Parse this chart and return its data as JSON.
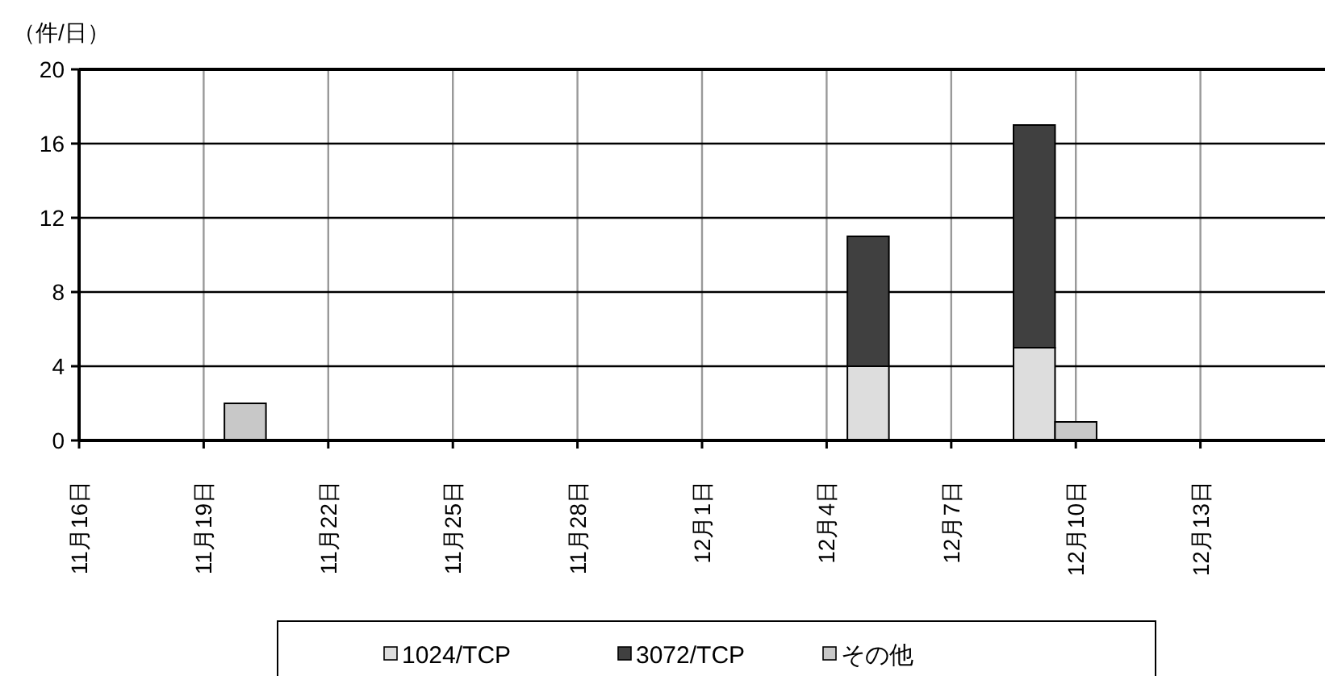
{
  "chart_data": {
    "type": "bar",
    "stacked": true,
    "ylabel": "（件/日）",
    "x": [
      "--11-20",
      "--12-05",
      "--12-09",
      "--12-10"
    ],
    "series": [
      {
        "name": "1024/TCP",
        "color": "#dddddd",
        "values": [
          0,
          4,
          5,
          0
        ]
      },
      {
        "name": "3072/TCP",
        "color": "#404040",
        "values": [
          0,
          7,
          12,
          0
        ]
      },
      {
        "name": "その他",
        "color": "#c8c8c8",
        "values": [
          2,
          0,
          0,
          1
        ]
      }
    ],
    "xlim": [
      "--11-16",
      "--12-16"
    ],
    "xticks": [
      {
        "value": "--11-16",
        "label": "11月16日"
      },
      {
        "value": "--11-19",
        "label": "11月19日"
      },
      {
        "value": "--11-22",
        "label": "11月22日"
      },
      {
        "value": "--11-25",
        "label": "11月25日"
      },
      {
        "value": "--11-28",
        "label": "11月28日"
      },
      {
        "value": "--12-01",
        "label": "12月1日"
      },
      {
        "value": "--12-04",
        "label": "12月4日"
      },
      {
        "value": "--12-07",
        "label": "12月7日"
      },
      {
        "value": "--12-10",
        "label": "12月10日"
      },
      {
        "value": "--12-13",
        "label": "12月13日"
      }
    ],
    "ylim": [
      0,
      20
    ],
    "yticks": [
      0,
      4,
      8,
      12,
      16,
      20
    ],
    "grid": true,
    "legend": "bottom"
  }
}
